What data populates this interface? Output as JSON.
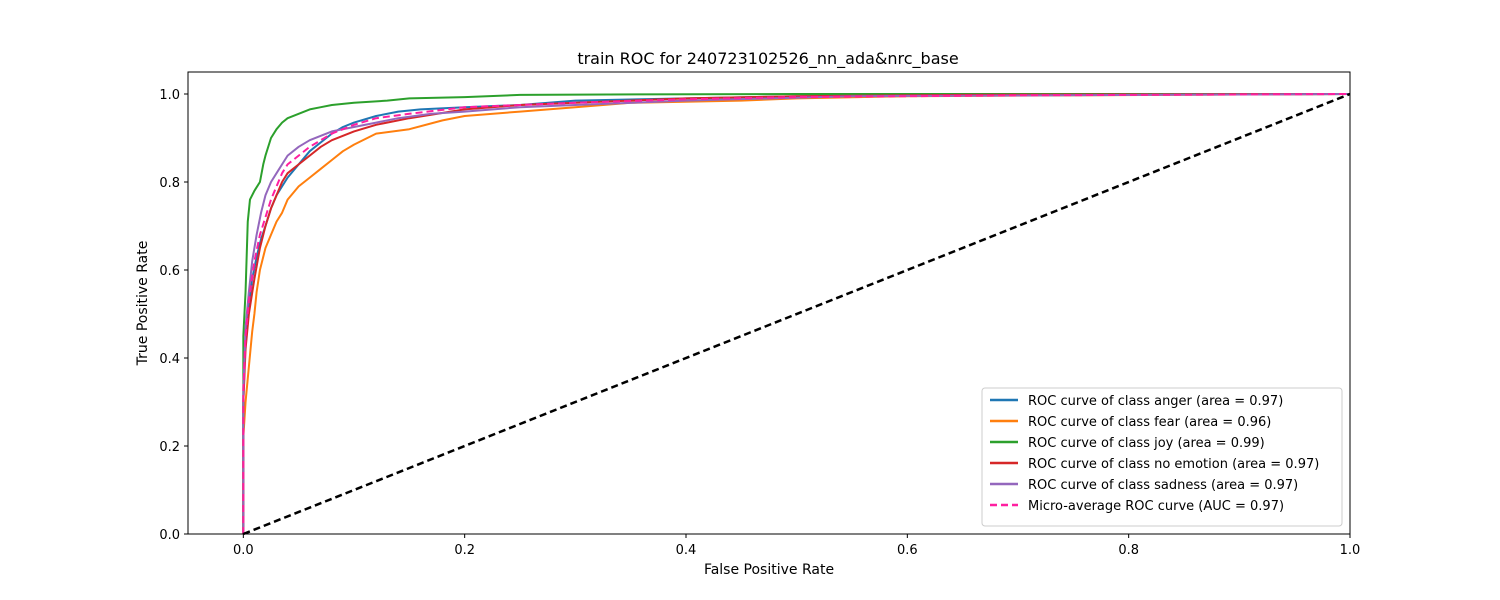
{
  "chart_data": {
    "type": "line",
    "title": "train ROC for 240723102526_nn_ada&nrc_base",
    "xlabel": "False Positive Rate",
    "ylabel": "True Positive Rate",
    "xlim": [
      -0.05,
      1.0
    ],
    "ylim": [
      0.0,
      1.05
    ],
    "x_ticks": [
      "0.0",
      "0.2",
      "0.4",
      "0.6",
      "0.8",
      "1.0"
    ],
    "y_ticks": [
      "0.0",
      "0.2",
      "0.4",
      "0.6",
      "0.8",
      "1.0"
    ],
    "grid": false,
    "legend_position": "lower-right",
    "series": [
      {
        "name": "ROC curve of class anger (area = 0.97)",
        "color": "#1f77b4",
        "dash": "solid",
        "x": [
          0,
          0.0,
          0.002,
          0.005,
          0.008,
          0.012,
          0.016,
          0.02,
          0.025,
          0.03,
          0.035,
          0.04,
          0.05,
          0.06,
          0.07,
          0.08,
          0.09,
          0.1,
          0.12,
          0.14,
          0.16,
          0.2,
          0.25,
          0.3,
          0.4,
          0.5,
          0.7,
          1.0
        ],
        "y": [
          0,
          0.3,
          0.45,
          0.52,
          0.58,
          0.63,
          0.67,
          0.7,
          0.74,
          0.77,
          0.79,
          0.81,
          0.84,
          0.87,
          0.89,
          0.91,
          0.925,
          0.935,
          0.95,
          0.96,
          0.965,
          0.97,
          0.975,
          0.985,
          0.99,
          0.995,
          0.998,
          1.0
        ]
      },
      {
        "name": "ROC curve of class fear (area = 0.96)",
        "color": "#ff7f0e",
        "dash": "solid",
        "x": [
          0,
          0.0,
          0.002,
          0.005,
          0.008,
          0.01,
          0.012,
          0.015,
          0.02,
          0.025,
          0.03,
          0.035,
          0.04,
          0.05,
          0.06,
          0.07,
          0.08,
          0.09,
          0.1,
          0.12,
          0.15,
          0.18,
          0.2,
          0.25,
          0.3,
          0.35,
          0.45,
          0.5,
          0.6,
          1.0
        ],
        "y": [
          0,
          0.22,
          0.3,
          0.38,
          0.46,
          0.5,
          0.55,
          0.6,
          0.65,
          0.68,
          0.71,
          0.73,
          0.76,
          0.79,
          0.81,
          0.83,
          0.85,
          0.87,
          0.885,
          0.91,
          0.92,
          0.94,
          0.95,
          0.96,
          0.97,
          0.98,
          0.985,
          0.99,
          0.995,
          1.0
        ]
      },
      {
        "name": "ROC curve of class joy (area = 0.99)",
        "color": "#2ca02c",
        "dash": "solid",
        "x": [
          0,
          0.0,
          0.002,
          0.004,
          0.006,
          0.01,
          0.015,
          0.018,
          0.02,
          0.025,
          0.03,
          0.035,
          0.04,
          0.05,
          0.06,
          0.07,
          0.08,
          0.1,
          0.13,
          0.15,
          0.2,
          0.25,
          0.33,
          0.5,
          1.0
        ],
        "y": [
          0,
          0.45,
          0.55,
          0.71,
          0.76,
          0.78,
          0.8,
          0.84,
          0.86,
          0.9,
          0.92,
          0.935,
          0.945,
          0.955,
          0.965,
          0.97,
          0.975,
          0.98,
          0.985,
          0.99,
          0.993,
          0.998,
          0.999,
          1.0,
          1.0
        ]
      },
      {
        "name": "ROC curve of class no emotion (area = 0.97)",
        "color": "#d62728",
        "dash": "solid",
        "x": [
          0,
          0.0,
          0.002,
          0.005,
          0.01,
          0.015,
          0.02,
          0.025,
          0.03,
          0.035,
          0.04,
          0.05,
          0.06,
          0.07,
          0.08,
          0.09,
          0.1,
          0.12,
          0.15,
          0.2,
          0.25,
          0.3,
          0.4,
          0.5,
          0.65,
          1.0
        ],
        "y": [
          0,
          0.3,
          0.42,
          0.5,
          0.58,
          0.65,
          0.7,
          0.74,
          0.77,
          0.8,
          0.82,
          0.84,
          0.86,
          0.88,
          0.895,
          0.905,
          0.915,
          0.93,
          0.945,
          0.965,
          0.975,
          0.98,
          0.99,
          0.995,
          0.998,
          1.0
        ]
      },
      {
        "name": "ROC curve of class sadness (area = 0.97)",
        "color": "#9467bd",
        "dash": "solid",
        "x": [
          0,
          0.0,
          0.002,
          0.005,
          0.008,
          0.012,
          0.016,
          0.02,
          0.025,
          0.03,
          0.035,
          0.04,
          0.05,
          0.06,
          0.07,
          0.08,
          0.1,
          0.12,
          0.14,
          0.17,
          0.2,
          0.25,
          0.3,
          0.4,
          0.55,
          1.0
        ],
        "y": [
          0,
          0.32,
          0.47,
          0.55,
          0.62,
          0.68,
          0.73,
          0.77,
          0.8,
          0.82,
          0.84,
          0.86,
          0.88,
          0.895,
          0.905,
          0.915,
          0.925,
          0.935,
          0.945,
          0.955,
          0.96,
          0.97,
          0.975,
          0.985,
          0.995,
          1.0
        ]
      },
      {
        "name": "Micro-average ROC curve (AUC = 0.97)",
        "color": "#ff1fa0",
        "dash": "dashed",
        "x": [
          0,
          0.0,
          0.002,
          0.005,
          0.01,
          0.015,
          0.02,
          0.025,
          0.03,
          0.035,
          0.04,
          0.05,
          0.06,
          0.07,
          0.08,
          0.09,
          0.1,
          0.12,
          0.15,
          0.2,
          0.25,
          0.3,
          0.4,
          0.5,
          0.7,
          1.0
        ],
        "y": [
          0,
          0.33,
          0.45,
          0.53,
          0.62,
          0.68,
          0.72,
          0.76,
          0.79,
          0.82,
          0.84,
          0.86,
          0.88,
          0.895,
          0.91,
          0.92,
          0.93,
          0.945,
          0.955,
          0.97,
          0.975,
          0.98,
          0.988,
          0.993,
          0.997,
          1.0
        ]
      },
      {
        "name": "",
        "color": "#000000",
        "dash": "dashed",
        "x": [
          0,
          1
        ],
        "y": [
          0,
          1
        ]
      }
    ]
  }
}
